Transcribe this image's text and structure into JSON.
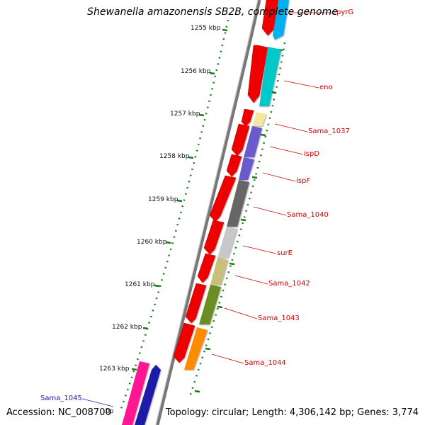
{
  "header": {
    "title": "Shewanella amazonensis SB2B, complete genome"
  },
  "footer": {
    "accession": "Accession: NC_008700",
    "topology": "Topology: circular; Length: 4,306,142 bp; Genes: 3,774"
  },
  "ruler": {
    "ticks": [
      "1255 kbp",
      "1256 kbp",
      "1257 kbp",
      "1258 kbp",
      "1259 kbp",
      "1260 kbp",
      "1261 kbp",
      "1262 kbp",
      "1263 kbp"
    ],
    "partial_label": "bp",
    "tick_color": "#1a7a1a"
  },
  "genes": [
    {
      "name": "pyrG",
      "color": "#00b0f0"
    },
    {
      "name": "eno",
      "color": "#00c8c8"
    },
    {
      "name": "Sama_1037",
      "color": "#f5e6a0"
    },
    {
      "name": "ispD",
      "color": "#6a5acd"
    },
    {
      "name": "ispF",
      "color": "#6a5acd"
    },
    {
      "name": "Sama_1040",
      "color": "#666666"
    },
    {
      "name": "surE",
      "color": "#c8c8c8"
    },
    {
      "name": "Sama_1042",
      "color": "#c8c07a"
    },
    {
      "name": "Sama_1043",
      "color": "#6b8e23"
    },
    {
      "name": "Sama_1044",
      "color": "#ff8c00"
    },
    {
      "name": "Sama_1045",
      "color": "#1a1aa8"
    }
  ],
  "colors": {
    "strand_forward": "#ee0000",
    "backbone": "#888888",
    "pink_gene": "#ff1493",
    "label_line": "#cc0000"
  }
}
